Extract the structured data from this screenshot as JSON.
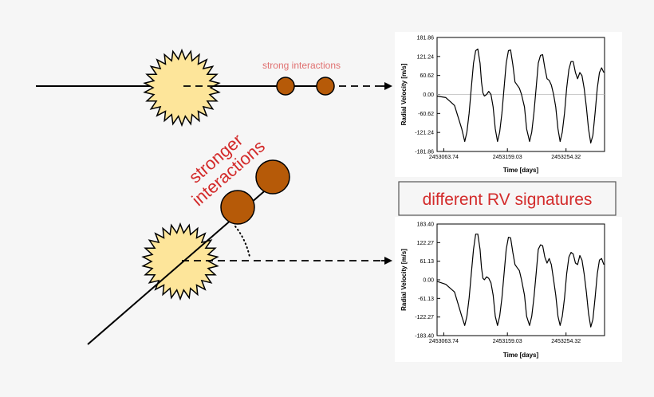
{
  "labels": {
    "strong": "strong interactions",
    "stronger_line1": "stronger",
    "stronger_line2": "interactions",
    "different": "different RV signatures"
  },
  "colors": {
    "star_fill": "#fde59a",
    "planet_fill": "#b65a08",
    "label_red": "#d32b2b",
    "light_red": "#e07070",
    "box_border": "#555555"
  },
  "charts": [
    {
      "type": "line",
      "xlabel": "Time [days]",
      "ylabel": "Radial Velocity [m/s]",
      "yticks": [
        "181.86",
        "121.24",
        "60.62",
        "0.00",
        "-60.62",
        "-121.24",
        "-181.86"
      ],
      "xticks": [
        "2453063.74",
        "2453159.03",
        "2453254.32"
      ],
      "ylim": [
        -181.86,
        181.86
      ],
      "grid": false,
      "zero_line": true,
      "curve_points": [
        [
          0,
          -5
        ],
        [
          12,
          -10
        ],
        [
          24,
          -35
        ],
        [
          34,
          -110
        ],
        [
          38,
          -150
        ],
        [
          41,
          -120
        ],
        [
          44,
          -60
        ],
        [
          47,
          20
        ],
        [
          50,
          100
        ],
        [
          53,
          140
        ],
        [
          56,
          145
        ],
        [
          59,
          100
        ],
        [
          61,
          40
        ],
        [
          63,
          5
        ],
        [
          65,
          -5
        ],
        [
          68,
          0
        ],
        [
          71,
          10
        ],
        [
          74,
          0
        ],
        [
          77,
          -40
        ],
        [
          80,
          -110
        ],
        [
          83,
          -150
        ],
        [
          86,
          -120
        ],
        [
          89,
          -60
        ],
        [
          92,
          20
        ],
        [
          95,
          100
        ],
        [
          98,
          140
        ],
        [
          101,
          142
        ],
        [
          104,
          95
        ],
        [
          107,
          40
        ],
        [
          110,
          30
        ],
        [
          113,
          20
        ],
        [
          116,
          0
        ],
        [
          120,
          -40
        ],
        [
          123,
          -110
        ],
        [
          127,
          -150
        ],
        [
          130,
          -120
        ],
        [
          133,
          -60
        ],
        [
          136,
          20
        ],
        [
          139,
          100
        ],
        [
          142,
          125
        ],
        [
          145,
          127
        ],
        [
          148,
          85
        ],
        [
          151,
          50
        ],
        [
          154,
          45
        ],
        [
          157,
          30
        ],
        [
          160,
          0
        ],
        [
          163,
          -40
        ],
        [
          166,
          -110
        ],
        [
          169,
          -150
        ],
        [
          172,
          -120
        ],
        [
          175,
          -60
        ],
        [
          178,
          20
        ],
        [
          181,
          80
        ],
        [
          184,
          105
        ],
        [
          187,
          105
        ],
        [
          190,
          70
        ],
        [
          193,
          50
        ],
        [
          196,
          70
        ],
        [
          199,
          60
        ],
        [
          202,
          20
        ],
        [
          205,
          -40
        ],
        [
          208,
          -110
        ],
        [
          211,
          -155
        ],
        [
          214,
          -130
        ],
        [
          217,
          -60
        ],
        [
          220,
          20
        ],
        [
          223,
          70
        ],
        [
          226,
          85
        ],
        [
          229,
          70
        ]
      ]
    },
    {
      "type": "line",
      "xlabel": "Time [days]",
      "ylabel": "Radial Velocity [m/s]",
      "yticks": [
        "183.40",
        "122.27",
        "61.13",
        "0.00",
        "-61.13",
        "-122.27",
        "-183.40"
      ],
      "xticks": [
        "2453063.74",
        "2453159.03",
        "2453254.32"
      ],
      "ylim": [
        -183.4,
        183.4
      ],
      "grid": false,
      "zero_line": false,
      "curve_points": [
        [
          0,
          -5
        ],
        [
          12,
          -15
        ],
        [
          24,
          -40
        ],
        [
          34,
          -120
        ],
        [
          38,
          -150
        ],
        [
          41,
          -120
        ],
        [
          44,
          -60
        ],
        [
          47,
          20
        ],
        [
          50,
          100
        ],
        [
          53,
          150
        ],
        [
          56,
          150
        ],
        [
          59,
          100
        ],
        [
          61,
          40
        ],
        [
          63,
          5
        ],
        [
          65,
          0
        ],
        [
          68,
          10
        ],
        [
          71,
          5
        ],
        [
          74,
          -10
        ],
        [
          77,
          -50
        ],
        [
          80,
          -120
        ],
        [
          83,
          -150
        ],
        [
          86,
          -120
        ],
        [
          89,
          -60
        ],
        [
          92,
          20
        ],
        [
          95,
          100
        ],
        [
          98,
          140
        ],
        [
          101,
          138
        ],
        [
          104,
          90
        ],
        [
          107,
          50
        ],
        [
          110,
          40
        ],
        [
          113,
          30
        ],
        [
          116,
          0
        ],
        [
          120,
          -50
        ],
        [
          123,
          -120
        ],
        [
          127,
          -150
        ],
        [
          130,
          -120
        ],
        [
          133,
          -60
        ],
        [
          136,
          20
        ],
        [
          139,
          100
        ],
        [
          142,
          115
        ],
        [
          145,
          112
        ],
        [
          148,
          75
        ],
        [
          151,
          55
        ],
        [
          154,
          70
        ],
        [
          157,
          50
        ],
        [
          160,
          0
        ],
        [
          163,
          -50
        ],
        [
          166,
          -120
        ],
        [
          169,
          -150
        ],
        [
          172,
          -120
        ],
        [
          175,
          -60
        ],
        [
          178,
          20
        ],
        [
          181,
          75
        ],
        [
          184,
          90
        ],
        [
          187,
          85
        ],
        [
          190,
          55
        ],
        [
          193,
          50
        ],
        [
          196,
          80
        ],
        [
          199,
          65
        ],
        [
          202,
          20
        ],
        [
          205,
          -40
        ],
        [
          208,
          -110
        ],
        [
          211,
          -155
        ],
        [
          214,
          -130
        ],
        [
          217,
          -60
        ],
        [
          220,
          20
        ],
        [
          223,
          65
        ],
        [
          226,
          70
        ],
        [
          229,
          50
        ]
      ]
    }
  ]
}
